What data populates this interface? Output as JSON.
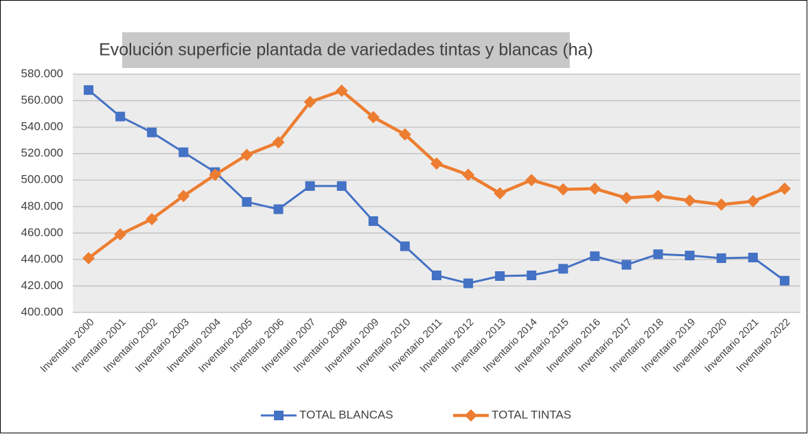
{
  "chart_data": {
    "type": "line",
    "title": "Evolución superficie plantada de variedades tintas y blancas (ha)",
    "categories": [
      "Inventario 2000",
      "Inventario 2001",
      "Inventario 2002",
      "Inventario 2003",
      "Inventario 2004",
      "Inventario 2005",
      "Inventario 2006",
      "Inventario 2007",
      "Inventario 2008",
      "Inventario 2009",
      "Inventario 2010",
      "Inventario 2011",
      "Inventario 2012",
      "Inventario 2013",
      "Inventario 2014",
      "Inventario 2015",
      "Inventario 2016",
      "Inventario 2017",
      "Inventario 2018",
      "Inventario 2019",
      "Inventario 2020",
      "Inventario 2021",
      "Inventario 2022"
    ],
    "series": [
      {
        "name": "TOTAL BLANCAS",
        "color": "#4472c4",
        "marker": "square",
        "values": [
          568000,
          548000,
          536000,
          521000,
          506000,
          483500,
          478000,
          495500,
          495500,
          469000,
          450000,
          428000,
          422000,
          427500,
          428000,
          433000,
          442500,
          436000,
          444000,
          443000,
          441000,
          441500,
          424000
        ]
      },
      {
        "name": "TOTAL TINTAS",
        "color": "#ed7d31",
        "marker": "diamond",
        "values": [
          441000,
          459000,
          470500,
          488000,
          504000,
          519000,
          528500,
          559000,
          567500,
          547500,
          534500,
          512500,
          504000,
          490000,
          500000,
          493000,
          493500,
          486500,
          488000,
          484500,
          481500,
          484000,
          493500
        ]
      }
    ],
    "ylim": [
      400000,
      580000
    ],
    "yticks": [
      {
        "value": 400000,
        "label": "400.000"
      },
      {
        "value": 420000,
        "label": "420.000"
      },
      {
        "value": 440000,
        "label": "440.000"
      },
      {
        "value": 460000,
        "label": "460.000"
      },
      {
        "value": 480000,
        "label": "480.000"
      },
      {
        "value": 500000,
        "label": "500.000"
      },
      {
        "value": 520000,
        "label": "520.000"
      },
      {
        "value": 540000,
        "label": "540.000"
      },
      {
        "value": 560000,
        "label": "560.000"
      },
      {
        "value": 580000,
        "label": "580.000"
      }
    ],
    "grid": true,
    "legend": "bottom"
  }
}
